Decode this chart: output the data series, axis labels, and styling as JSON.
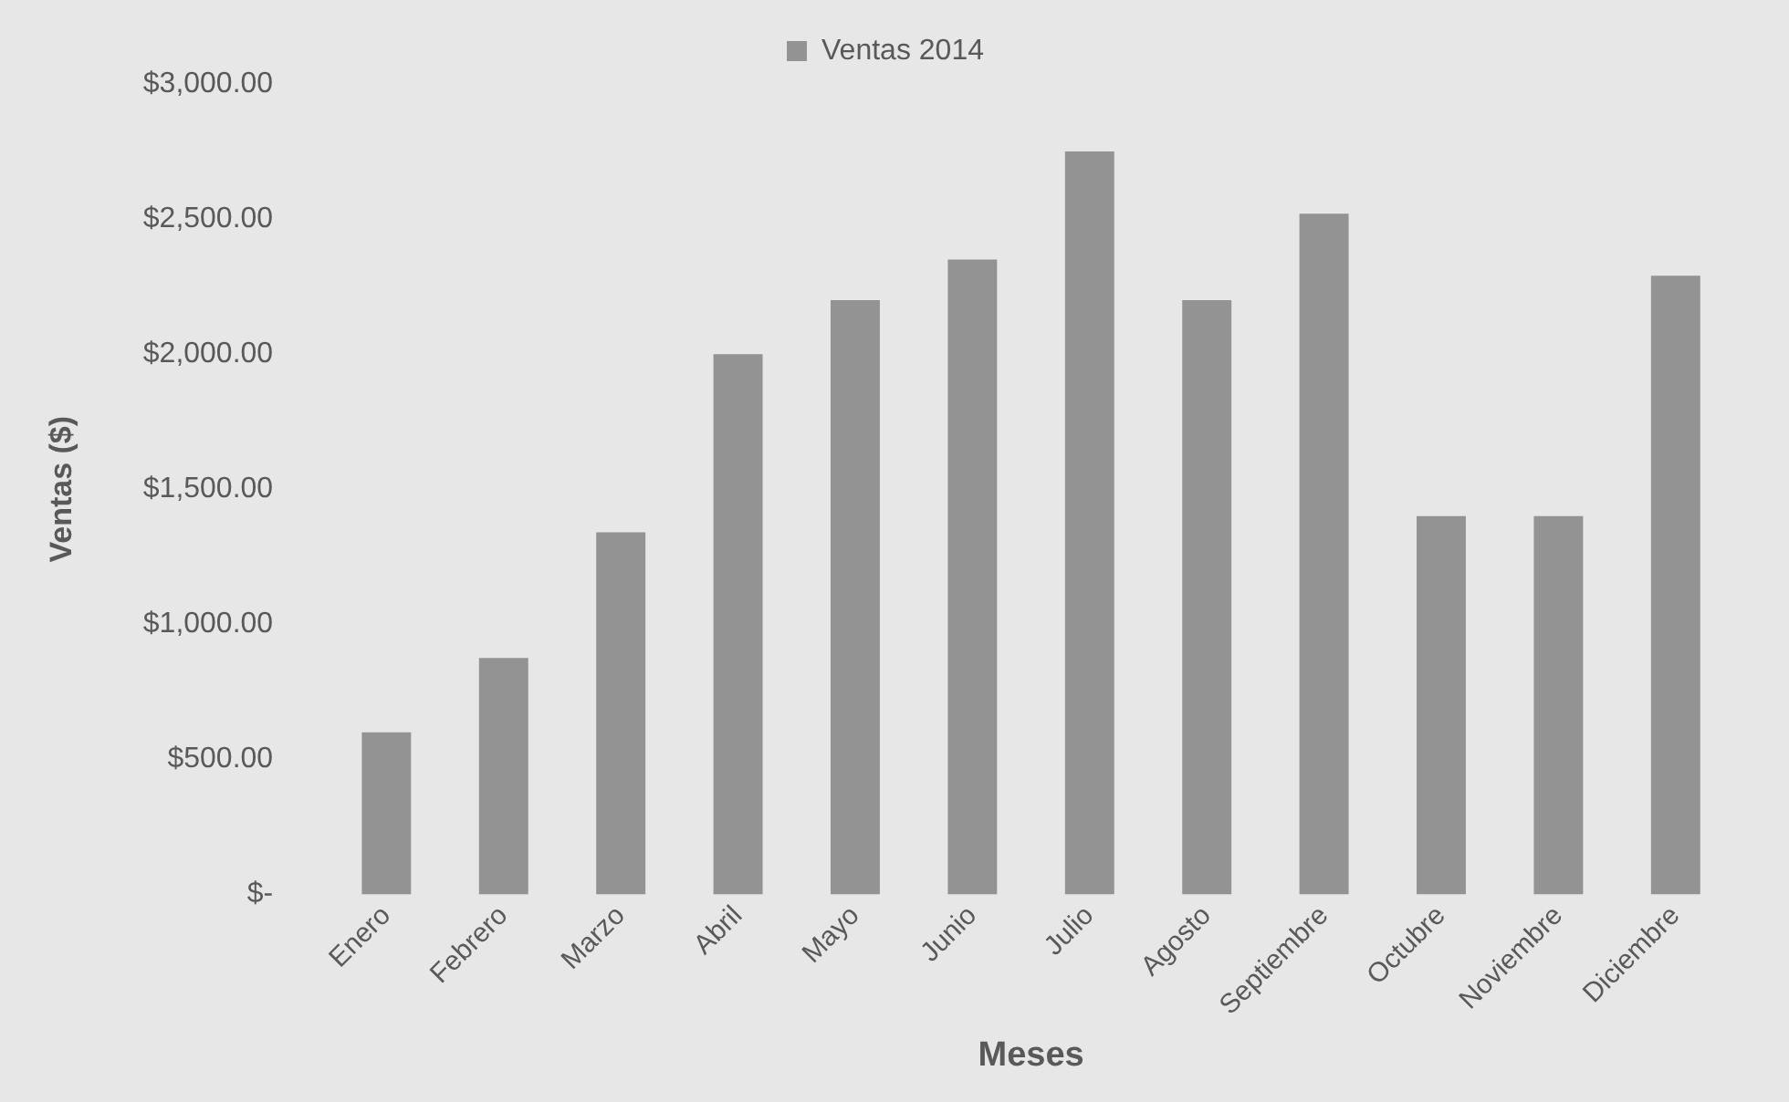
{
  "chart_data": {
    "type": "bar",
    "xlabel": "Meses",
    "ylabel": "Ventas ($)",
    "categories": [
      "Enero",
      "Febrero",
      "Marzo",
      "Abril",
      "Mayo",
      "Junio",
      "Julio",
      "Agosto",
      "Septiembre",
      "Octubre",
      "Noviembre",
      "Diciembre"
    ],
    "series": [
      {
        "name": "Ventas 2014",
        "color": "#939393",
        "values": [
          600,
          875,
          1340,
          2000,
          2200,
          2350,
          2750,
          2200,
          2520,
          1400,
          1400,
          2290
        ]
      }
    ],
    "ylim": [
      0,
      3000
    ],
    "yticks": [
      {
        "value": 0,
        "label": "$-"
      },
      {
        "value": 500,
        "label": "$500.00"
      },
      {
        "value": 1000,
        "label": "$1,000.00"
      },
      {
        "value": 1500,
        "label": "$1,500.00"
      },
      {
        "value": 2000,
        "label": "$2,000.00"
      },
      {
        "value": 2500,
        "label": "$2,500.00"
      },
      {
        "value": 3000,
        "label": "$3,000.00"
      }
    ],
    "grid": false,
    "legend": "top"
  }
}
